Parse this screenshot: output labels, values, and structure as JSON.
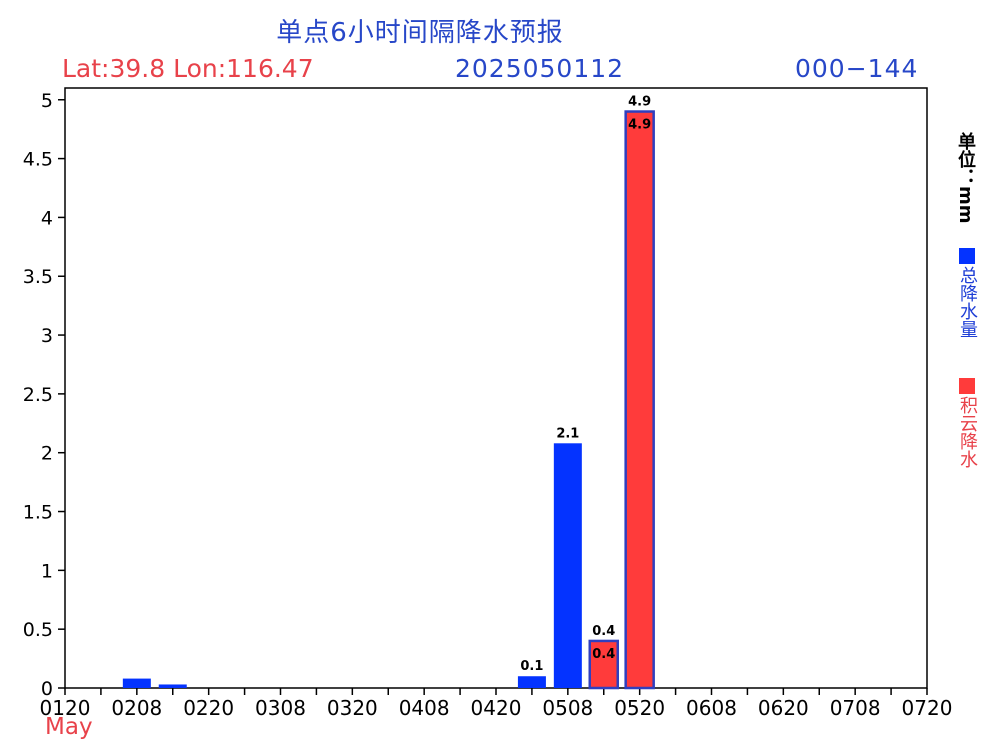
{
  "header": {
    "title": "单点6小时间隔降水预报",
    "location": "Lat:39.8  Lon:116.47",
    "init_time": "2025050112",
    "forecast_range": "000−144"
  },
  "unit_label": "单位：mm",
  "month_label": "May",
  "colors": {
    "total": "#0433ff",
    "convective": "#ff3b3b",
    "outline": "#2f3fbf"
  },
  "chart_data": {
    "type": "bar",
    "title": "单点6小时间隔降水预报",
    "ylim": [
      0,
      5.1
    ],
    "yticks": [
      0,
      0.5,
      1,
      1.5,
      2,
      2.5,
      3,
      3.5,
      4,
      4.5,
      5
    ],
    "ytick_labels": [
      "0",
      "0.5",
      "1",
      "1.5",
      "2",
      "2.5",
      "3",
      "3.5",
      "4",
      "4.5",
      "5"
    ],
    "xlim_hours": [
      0,
      144
    ],
    "xtick_labels": [
      "0120",
      "0208",
      "0220",
      "0308",
      "0320",
      "0408",
      "0420",
      "0508",
      "0520",
      "0608",
      "0620",
      "0708",
      "0720"
    ],
    "legend": [
      {
        "name": "总降水量",
        "color": "#0433ff"
      },
      {
        "name": "积云降水",
        "color": "#ff3b3b"
      }
    ],
    "series": [
      {
        "name": "总降水量",
        "bars": [
          {
            "x_hour": 12,
            "value": 0.08
          },
          {
            "x_hour": 18,
            "value": 0.03
          },
          {
            "x_hour": 78,
            "value": 0.1,
            "label": "0.1"
          },
          {
            "x_hour": 84,
            "value": 2.08,
            "label": "2.1"
          },
          {
            "x_hour": 90,
            "value": 0.4,
            "label": "0.4"
          },
          {
            "x_hour": 96,
            "value": 4.9,
            "label": "4.9"
          }
        ]
      },
      {
        "name": "积云降水",
        "bars": [
          {
            "x_hour": 90,
            "value": 0.4,
            "label": "0.4"
          },
          {
            "x_hour": 96,
            "value": 4.9,
            "label": "4.9"
          }
        ]
      }
    ]
  }
}
